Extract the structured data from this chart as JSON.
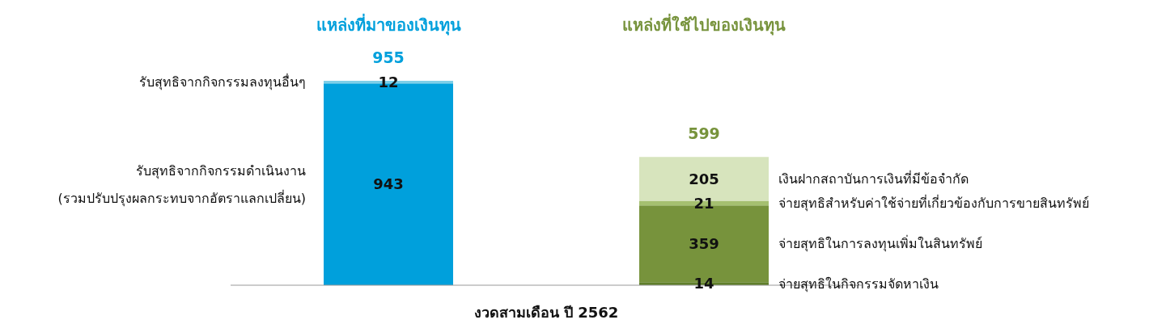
{
  "chart_data": {
    "type": "bar",
    "stacked": true,
    "data_labels": true,
    "categories": [
      "แหล่งที่มาของเงินทุน",
      "แหล่งที่ใช้ไปของเงินทุน"
    ],
    "totals": [
      "955",
      "599"
    ],
    "xlabel": "งวดสามเดือน ปี 2562",
    "series": [
      {
        "name": "รับสุทธิจากกิจกรรมดำเนินงาน (รวมปรับปรุงผลกระทบจากอัตราแลกเปลี่ยน)",
        "color": "#00a0dc",
        "values": [
          943,
          null
        ]
      },
      {
        "name": "รับสุทธิจากกิจกรรมลงทุนอื่นๆ",
        "color": "#7fcfe8",
        "values": [
          12,
          null
        ]
      },
      {
        "name": "จ่ายสุทธิในกิจกรรมจัดหาเงิน",
        "color": "#5f7f2a",
        "values": [
          null,
          14
        ]
      },
      {
        "name": "จ่ายสุทธิในการลงทุนเพิ่มในสินทรัพย์",
        "color": "#77933c",
        "values": [
          null,
          359
        ]
      },
      {
        "name": "จ่ายสุทธิสำหรับค่าใช้จ่ายที่เกี่ยวข้องกับการขายสินทรัพย์",
        "color": "#a5c070",
        "values": [
          null,
          21
        ]
      },
      {
        "name": "เงินฝากสถาบันการเงินที่มีข้อจำกัด",
        "color": "#d7e4bd",
        "values": [
          null,
          205
        ]
      }
    ]
  }
}
